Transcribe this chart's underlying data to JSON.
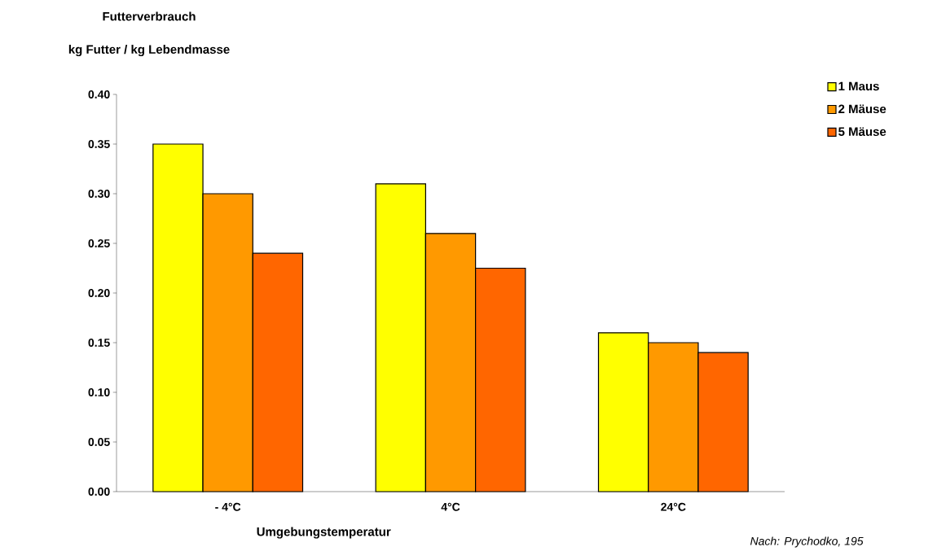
{
  "chart_data": {
    "type": "bar",
    "title": "Futterverbrauch",
    "ylabel": "kg Futter / kg Lebendmasse",
    "xlabel": "Umgebungstemperatur",
    "categories": [
      "- 4°C",
      "4°C",
      "24°C"
    ],
    "series": [
      {
        "name": "1 Maus",
        "color": "#ffff00",
        "values": [
          0.35,
          0.31,
          0.16
        ]
      },
      {
        "name": "2 Mäuse",
        "color": "#ff9900",
        "values": [
          0.3,
          0.26,
          0.15
        ]
      },
      {
        "name": "5 Mäuse",
        "color": "#ff6600",
        "values": [
          0.24,
          0.225,
          0.14
        ]
      }
    ],
    "ylim": [
      0,
      0.4
    ],
    "yticks": [
      {
        "value": 0,
        "label": "0.00"
      },
      {
        "value": 0.05,
        "label": "0.05"
      },
      {
        "value": 0.1,
        "label": "0.10"
      },
      {
        "value": 0.15,
        "label": "0.15"
      },
      {
        "value": 0.2,
        "label": "0.20"
      },
      {
        "value": 0.25,
        "label": "0.25"
      },
      {
        "value": 0.3,
        "label": "0.30"
      },
      {
        "value": 0.35,
        "label": "0.35"
      },
      {
        "value": 0.4,
        "label": "0.40"
      }
    ],
    "legend": "top right",
    "annotations": [
      "Nach: Prychodko, 195"
    ]
  }
}
